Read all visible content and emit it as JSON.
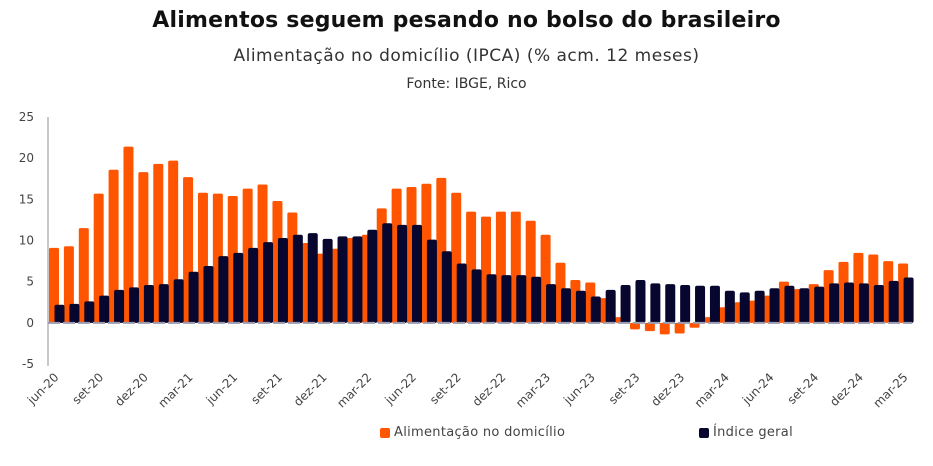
{
  "header": {
    "title": "Alimentos seguem pesando no bolso do brasileiro",
    "subtitle": "Alimentação no domicílio (IPCA) (% acm. 12 meses)",
    "source": "Fonte: IBGE, Rico"
  },
  "colors": {
    "food": "#FF5500",
    "general": "#06062E",
    "axis": "#C8C8C8",
    "zero_line": "#9A9AB0"
  },
  "chart_data": {
    "type": "bar",
    "title": "Alimentos seguem pesando no bolso do brasileiro",
    "subtitle": "Alimentação no domicílio (IPCA) (% acm. 12 meses)",
    "xlabel": "",
    "ylabel": "",
    "ylim": [
      -5,
      25
    ],
    "yticks": [
      25,
      20,
      15,
      10,
      5,
      0,
      -5
    ],
    "grid": false,
    "legend_position": "bottom",
    "categories": [
      "jun-20",
      "jul-20",
      "ago-20",
      "set-20",
      "out-20",
      "nov-20",
      "dez-20",
      "jan-21",
      "fev-21",
      "mar-21",
      "abr-21",
      "mai-21",
      "jun-21",
      "jul-21",
      "ago-21",
      "set-21",
      "out-21",
      "nov-21",
      "dez-21",
      "jan-22",
      "fev-22",
      "mar-22",
      "abr-22",
      "mai-22",
      "jun-22",
      "jul-22",
      "ago-22",
      "set-22",
      "out-22",
      "nov-22",
      "dez-22",
      "jan-23",
      "fev-23",
      "mar-23",
      "abr-23",
      "mai-23",
      "jun-23",
      "jul-23",
      "ago-23",
      "set-23",
      "out-23",
      "nov-23",
      "dez-23",
      "jan-24",
      "fev-24",
      "mar-24",
      "abr-24",
      "mai-24",
      "jun-24",
      "jul-24",
      "ago-24",
      "set-24",
      "out-24",
      "nov-24",
      "dez-24",
      "jan-25",
      "fev-25",
      "mar-25"
    ],
    "xtick_labels": [
      "jun-20",
      "set-20",
      "dez-20",
      "mar-21",
      "jun-21",
      "set-21",
      "dez-21",
      "mar-22",
      "jun-22",
      "set-22",
      "dez-22",
      "mar-23",
      "jun-23",
      "set-23",
      "dez-23",
      "mar-24",
      "jun-24",
      "set-24",
      "dez-24",
      "mar-25"
    ],
    "series": [
      {
        "name": "Alimentação no domicílio",
        "color": "#FF5500",
        "values": [
          9.1,
          9.3,
          11.5,
          15.7,
          18.6,
          21.4,
          18.3,
          19.3,
          19.7,
          17.7,
          15.8,
          15.7,
          15.4,
          16.3,
          16.8,
          14.8,
          13.4,
          9.7,
          8.4,
          9.0,
          10.3,
          10.7,
          13.9,
          16.3,
          16.5,
          16.9,
          17.6,
          15.8,
          13.5,
          12.9,
          13.5,
          13.5,
          12.4,
          10.7,
          7.3,
          5.2,
          4.9,
          3.0,
          0.7,
          -0.8,
          -1.0,
          -1.4,
          -1.3,
          -0.6,
          0.7,
          1.9,
          2.5,
          2.7,
          3.3,
          5.0,
          4.1,
          4.7,
          6.4,
          7.4,
          8.5,
          8.3,
          7.5,
          7.2
        ]
      },
      {
        "name": "Índice geral",
        "color": "#06062E",
        "values": [
          2.2,
          2.3,
          2.6,
          3.3,
          4.0,
          4.3,
          4.6,
          4.7,
          5.3,
          6.2,
          6.9,
          8.1,
          8.5,
          9.1,
          9.8,
          10.3,
          10.7,
          10.9,
          10.2,
          10.5,
          10.5,
          11.3,
          12.1,
          11.9,
          11.9,
          10.1,
          8.7,
          7.2,
          6.5,
          5.9,
          5.8,
          5.8,
          5.6,
          4.7,
          4.2,
          3.9,
          3.2,
          4.0,
          4.6,
          5.2,
          4.8,
          4.7,
          4.6,
          4.5,
          4.5,
          3.9,
          3.7,
          3.9,
          4.2,
          4.5,
          4.2,
          4.4,
          4.8,
          4.9,
          4.8,
          4.6,
          5.1,
          5.5
        ]
      }
    ]
  },
  "legend": {
    "items": [
      {
        "label": "Alimentação no domicílio",
        "color": "#FF5500"
      },
      {
        "label": "Índice geral",
        "color": "#06062E"
      }
    ]
  }
}
